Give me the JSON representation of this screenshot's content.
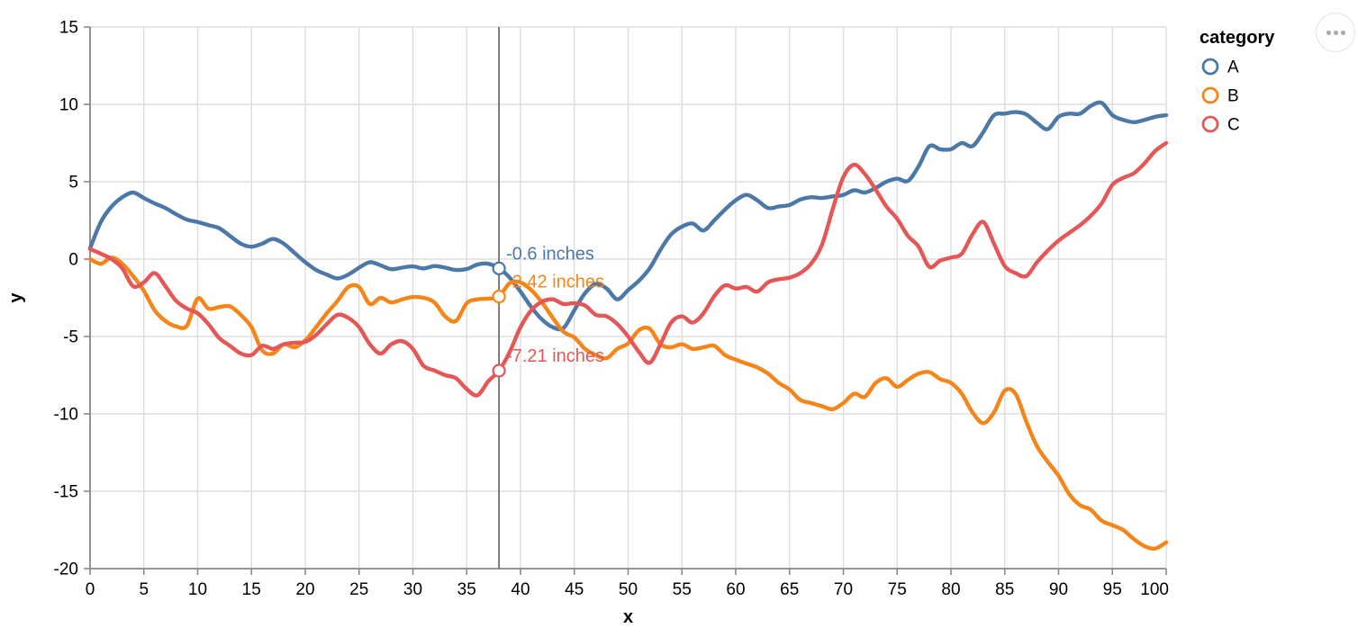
{
  "chart_data": {
    "type": "line",
    "title": "",
    "xlabel": "x",
    "ylabel": "y",
    "xlim": [
      0,
      100
    ],
    "ylim": [
      -20,
      15
    ],
    "grid": true,
    "legend_position": "right",
    "legend_title": "category",
    "x_ticks": [
      0,
      5,
      10,
      15,
      20,
      25,
      30,
      35,
      40,
      45,
      50,
      55,
      60,
      65,
      70,
      75,
      80,
      85,
      90,
      95,
      100
    ],
    "y_ticks": [
      -20,
      -15,
      -10,
      -5,
      0,
      5,
      10,
      15
    ],
    "x": [
      0,
      1,
      2,
      3,
      4,
      5,
      6,
      7,
      8,
      9,
      10,
      11,
      12,
      13,
      14,
      15,
      16,
      17,
      18,
      19,
      20,
      21,
      22,
      23,
      24,
      25,
      26,
      27,
      28,
      29,
      30,
      31,
      32,
      33,
      34,
      35,
      36,
      37,
      38,
      39,
      40,
      41,
      42,
      43,
      44,
      45,
      46,
      47,
      48,
      49,
      50,
      51,
      52,
      53,
      54,
      55,
      56,
      57,
      58,
      59,
      60,
      61,
      62,
      63,
      64,
      65,
      66,
      67,
      68,
      69,
      70,
      71,
      72,
      73,
      74,
      75,
      76,
      77,
      78,
      79,
      80,
      81,
      82,
      83,
      84,
      85,
      86,
      87,
      88,
      89,
      90,
      91,
      92,
      93,
      94,
      95,
      96,
      97,
      98,
      99,
      100
    ],
    "series": [
      {
        "name": "A",
        "color": "#4C78A8",
        "values": [
          0.7,
          2.4,
          3.4,
          4.0,
          4.3,
          3.95,
          3.6,
          3.3,
          2.9,
          2.55,
          2.4,
          2.2,
          2.0,
          1.5,
          1.0,
          0.8,
          1.0,
          1.3,
          1.0,
          0.4,
          -0.2,
          -0.7,
          -1.0,
          -1.25,
          -1.0,
          -0.55,
          -0.2,
          -0.4,
          -0.65,
          -0.55,
          -0.47,
          -0.6,
          -0.45,
          -0.55,
          -0.7,
          -0.64,
          -0.35,
          -0.3,
          -0.6,
          -1.2,
          -2.1,
          -3.1,
          -3.9,
          -4.4,
          -4.45,
          -3.3,
          -2.2,
          -1.6,
          -1.9,
          -2.6,
          -2.0,
          -1.4,
          -0.6,
          0.6,
          1.6,
          2.1,
          2.3,
          1.85,
          2.5,
          3.2,
          3.8,
          4.15,
          3.8,
          3.3,
          3.4,
          3.5,
          3.85,
          4.0,
          3.95,
          4.05,
          4.15,
          4.45,
          4.3,
          4.6,
          5.0,
          5.2,
          5.05,
          6.0,
          7.3,
          7.1,
          7.1,
          7.5,
          7.3,
          8.2,
          9.3,
          9.4,
          9.5,
          9.35,
          8.8,
          8.4,
          9.2,
          9.4,
          9.4,
          9.9,
          10.1,
          9.3,
          9.0,
          8.85,
          9.0,
          9.2,
          9.3
        ]
      },
      {
        "name": "B",
        "color": "#F58518",
        "values": [
          0.0,
          -0.3,
          0.1,
          -0.3,
          -1.1,
          -2.05,
          -3.3,
          -4.0,
          -4.35,
          -4.3,
          -2.55,
          -3.2,
          -3.1,
          -3.05,
          -3.6,
          -4.4,
          -5.9,
          -6.1,
          -5.5,
          -5.7,
          -5.25,
          -4.4,
          -3.5,
          -2.7,
          -1.8,
          -1.8,
          -2.9,
          -2.5,
          -2.8,
          -2.6,
          -2.45,
          -2.5,
          -2.8,
          -3.7,
          -4.0,
          -2.85,
          -2.6,
          -2.55,
          -2.42,
          -1.55,
          -1.5,
          -2.0,
          -2.8,
          -3.8,
          -4.7,
          -5.06,
          -5.8,
          -6.2,
          -6.4,
          -5.8,
          -5.45,
          -4.6,
          -4.5,
          -5.5,
          -5.7,
          -5.5,
          -5.8,
          -5.7,
          -5.6,
          -6.2,
          -6.5,
          -6.75,
          -7.0,
          -7.4,
          -8.0,
          -8.43,
          -9.1,
          -9.3,
          -9.5,
          -9.7,
          -9.3,
          -8.7,
          -8.9,
          -8.0,
          -7.7,
          -8.25,
          -7.8,
          -7.4,
          -7.3,
          -7.75,
          -8.0,
          -8.7,
          -9.9,
          -10.6,
          -9.9,
          -8.5,
          -8.7,
          -10.5,
          -12.1,
          -13.1,
          -14.0,
          -15.2,
          -15.9,
          -16.2,
          -16.9,
          -17.2,
          -17.5,
          -18.1,
          -18.55,
          -18.7,
          -18.3
        ]
      },
      {
        "name": "C",
        "color": "#E45756",
        "values": [
          0.65,
          0.35,
          0.0,
          -0.6,
          -1.75,
          -1.5,
          -0.9,
          -1.75,
          -2.7,
          -3.2,
          -3.5,
          -4.2,
          -5.1,
          -5.6,
          -6.1,
          -6.2,
          -5.6,
          -5.8,
          -5.5,
          -5.4,
          -5.35,
          -4.9,
          -4.2,
          -3.6,
          -3.8,
          -4.4,
          -5.5,
          -6.1,
          -5.5,
          -5.3,
          -5.8,
          -6.9,
          -7.2,
          -7.5,
          -7.7,
          -8.4,
          -8.8,
          -7.9,
          -7.21,
          -6.0,
          -4.4,
          -3.3,
          -2.75,
          -2.6,
          -2.9,
          -2.85,
          -3.0,
          -3.6,
          -3.7,
          -4.2,
          -5.0,
          -6.0,
          -6.7,
          -5.5,
          -4.1,
          -3.7,
          -4.1,
          -3.5,
          -2.4,
          -1.7,
          -1.9,
          -1.8,
          -2.1,
          -1.5,
          -1.3,
          -1.2,
          -0.9,
          -0.3,
          0.9,
          3.2,
          5.3,
          6.1,
          5.5,
          4.5,
          3.4,
          2.6,
          1.5,
          0.8,
          -0.5,
          -0.1,
          0.1,
          0.35,
          1.6,
          2.4,
          1.0,
          -0.45,
          -0.9,
          -1.1,
          -0.2,
          0.55,
          1.2,
          1.7,
          2.2,
          2.8,
          3.6,
          4.8,
          5.25,
          5.55,
          6.2,
          7.0,
          7.5
        ]
      }
    ],
    "hover": {
      "x": 38,
      "points": [
        {
          "series": "A",
          "value": -0.6,
          "label": "-0.6 inches"
        },
        {
          "series": "B",
          "value": -2.42,
          "label": "-2.42 inches"
        },
        {
          "series": "C",
          "value": -7.21,
          "label": "-7.21 inches"
        }
      ]
    }
  },
  "legend": {
    "title": "category",
    "items": [
      {
        "label": "A",
        "color": "#4C78A8"
      },
      {
        "label": "B",
        "color": "#F58518"
      },
      {
        "label": "C",
        "color": "#E45756"
      }
    ]
  },
  "ui_colors": {
    "grid": "#dddddd",
    "axis": "#888888",
    "label_text": "#000000",
    "hover_rule": "#6f6f6f",
    "point_fill": "#ffffff"
  },
  "actions_menu": {
    "icon": "ellipsis-icon"
  }
}
